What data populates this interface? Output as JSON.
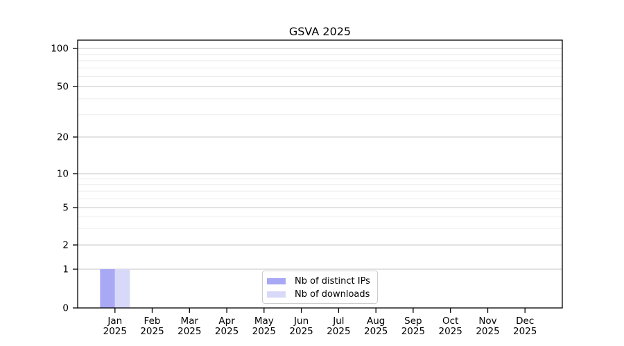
{
  "title": "GSVA 2025",
  "colors": {
    "bar_distinct_ips": "#a8a8f5",
    "bar_downloads": "#d8d8f8",
    "grid_major": "#c6c6c6",
    "grid_minor": "#ededed",
    "axis": "#000000",
    "text": "#000000",
    "legend_border": "#cccccc",
    "background": "#ffffff"
  },
  "chart_data": {
    "type": "bar",
    "title": "GSVA 2025",
    "categories": [
      {
        "month": "Jan",
        "year": "2025"
      },
      {
        "month": "Feb",
        "year": "2025"
      },
      {
        "month": "Mar",
        "year": "2025"
      },
      {
        "month": "Apr",
        "year": "2025"
      },
      {
        "month": "May",
        "year": "2025"
      },
      {
        "month": "Jun",
        "year": "2025"
      },
      {
        "month": "Jul",
        "year": "2025"
      },
      {
        "month": "Aug",
        "year": "2025"
      },
      {
        "month": "Sep",
        "year": "2025"
      },
      {
        "month": "Oct",
        "year": "2025"
      },
      {
        "month": "Nov",
        "year": "2025"
      },
      {
        "month": "Dec",
        "year": "2025"
      }
    ],
    "series": [
      {
        "name": "Nb of distinct IPs",
        "color": "#a8a8f5",
        "values": [
          1,
          0,
          0,
          0,
          0,
          0,
          0,
          0,
          0,
          0,
          0,
          0
        ]
      },
      {
        "name": "Nb of downloads",
        "color": "#d8d8f8",
        "values": [
          1,
          0,
          0,
          0,
          0,
          0,
          0,
          0,
          0,
          0,
          0,
          0
        ]
      }
    ],
    "y_axis": {
      "scale": "log-like",
      "major_ticks": [
        0,
        1,
        2,
        5,
        10,
        20,
        50,
        100
      ],
      "minor_ticks": [
        3,
        4,
        6,
        7,
        8,
        9,
        30,
        40,
        60,
        70,
        80,
        90
      ],
      "ylim": [
        0,
        117
      ],
      "grid": true
    },
    "legend": {
      "position": "lower-center",
      "entries": [
        "Nb of distinct IPs",
        "Nb of downloads"
      ]
    }
  }
}
